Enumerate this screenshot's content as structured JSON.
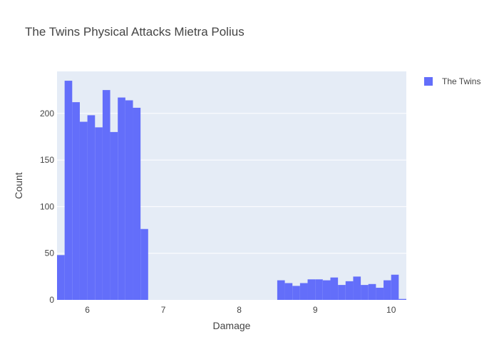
{
  "chart_data": {
    "type": "bar",
    "title": "The Twins Physical Attacks Mietra Polius",
    "xlabel": "Damage",
    "ylabel": "Count",
    "xlim": [
      5.6,
      10.2
    ],
    "ylim": [
      0,
      245
    ],
    "x_ticks": [
      6,
      7,
      8,
      9,
      10
    ],
    "y_ticks": [
      0,
      50,
      100,
      150,
      200
    ],
    "bin_width": 0.1,
    "bin_starts": [
      5.6,
      5.7,
      5.8,
      5.9,
      6.0,
      6.1,
      6.2,
      6.3,
      6.4,
      6.5,
      6.6,
      6.7,
      6.8,
      6.9,
      7.0,
      7.1,
      7.2,
      7.3,
      7.4,
      7.5,
      7.6,
      7.7,
      7.8,
      7.9,
      8.0,
      8.1,
      8.2,
      8.3,
      8.4,
      8.5,
      8.6,
      8.7,
      8.8,
      8.9,
      9.0,
      9.1,
      9.2,
      9.3,
      9.4,
      9.5,
      9.6,
      9.7,
      9.8,
      9.9,
      10.0,
      10.1
    ],
    "counts": [
      48,
      235,
      212,
      191,
      198,
      185,
      225,
      180,
      217,
      214,
      206,
      76,
      0,
      0,
      0,
      0,
      0,
      0,
      0,
      0,
      0,
      0,
      0,
      0,
      0,
      0,
      0,
      0,
      0,
      21,
      18,
      15,
      18,
      22,
      22,
      21,
      24,
      16,
      20,
      25,
      16,
      17,
      13,
      21,
      27,
      1
    ],
    "series": [
      {
        "name": "The Twins",
        "color": "#636efa"
      }
    ],
    "grid": true,
    "legend": "top-right",
    "plot_bg": "#e5ecf6"
  }
}
